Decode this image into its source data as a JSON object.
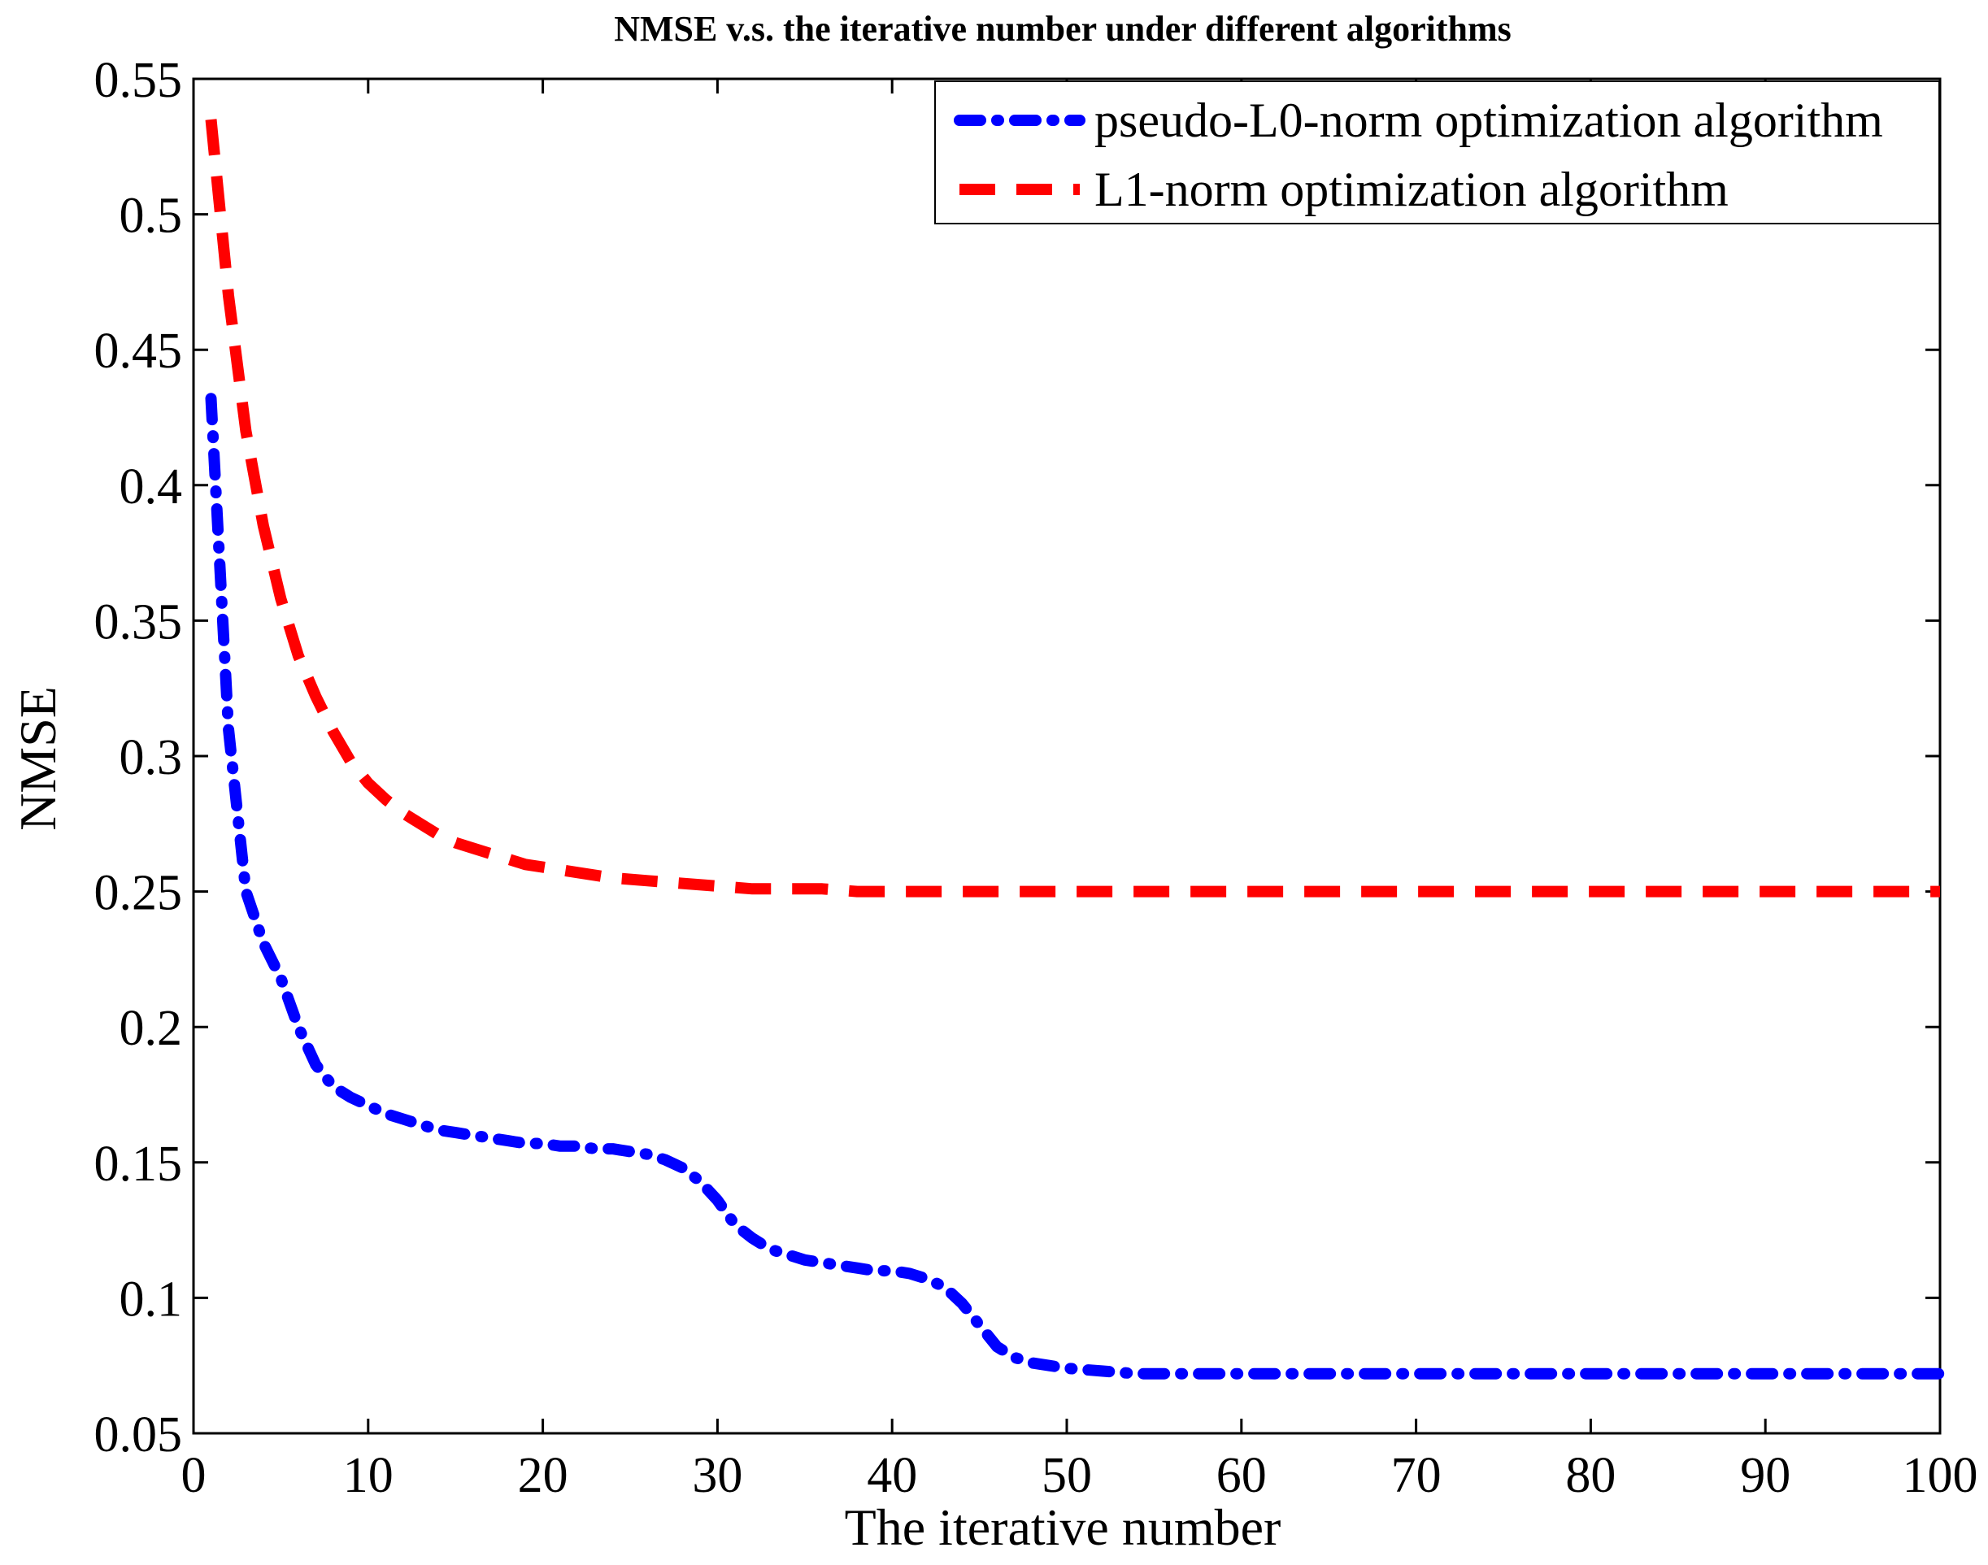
{
  "chart_data": {
    "type": "line",
    "title": "NMSE v.s. the iterative number under different algorithms",
    "xlabel": "The iterative number",
    "ylabel": "NMSE",
    "xlim": [
      0,
      100
    ],
    "ylim": [
      0.05,
      0.55
    ],
    "xticks": [
      0,
      10,
      20,
      30,
      40,
      50,
      60,
      70,
      80,
      90,
      100
    ],
    "yticks": [
      0.05,
      0.1,
      0.15,
      0.2,
      0.25,
      0.3,
      0.35,
      0.4,
      0.45,
      0.5,
      0.55
    ],
    "x_tick_labels": [
      "0",
      "10",
      "20",
      "30",
      "40",
      "50",
      "60",
      "70",
      "80",
      "90",
      "100"
    ],
    "y_tick_labels": [
      "0.05",
      "0.1",
      "0.15",
      "0.2",
      "0.25",
      "0.3",
      "0.35",
      "0.4",
      "0.45",
      "0.5",
      "0.55"
    ],
    "grid": false,
    "legend_position": "top-right",
    "series": [
      {
        "name": "pseudo-L0-norm optimization algorithm",
        "color": "#0000ff",
        "line_style": "dash-dot",
        "x": [
          1,
          2,
          3,
          4,
          5,
          6,
          7,
          8,
          9,
          10,
          11,
          12,
          13,
          14,
          15,
          16,
          17,
          18,
          19,
          20,
          21,
          22,
          23,
          24,
          25,
          26,
          27,
          28,
          29,
          30,
          31,
          32,
          33,
          34,
          35,
          36,
          37,
          38,
          39,
          40,
          41,
          42,
          43,
          44,
          45,
          46,
          47,
          48,
          49,
          50,
          52,
          54,
          56,
          58,
          60,
          65,
          70,
          75,
          80,
          85,
          90,
          95,
          100
        ],
        "y": [
          0.432,
          0.31,
          0.25,
          0.231,
          0.218,
          0.2,
          0.186,
          0.178,
          0.174,
          0.171,
          0.168,
          0.166,
          0.164,
          0.162,
          0.161,
          0.16,
          0.159,
          0.158,
          0.157,
          0.157,
          0.156,
          0.156,
          0.155,
          0.155,
          0.154,
          0.153,
          0.151,
          0.148,
          0.143,
          0.136,
          0.127,
          0.122,
          0.118,
          0.116,
          0.114,
          0.113,
          0.112,
          0.111,
          0.11,
          0.11,
          0.109,
          0.107,
          0.104,
          0.098,
          0.09,
          0.082,
          0.078,
          0.076,
          0.075,
          0.074,
          0.073,
          0.072,
          0.072,
          0.072,
          0.072,
          0.072,
          0.072,
          0.072,
          0.072,
          0.072,
          0.072,
          0.072,
          0.072
        ]
      },
      {
        "name": "L1-norm optimization algorithm",
        "color": "#ff0000",
        "line_style": "dashed",
        "x": [
          1,
          2,
          3,
          4,
          5,
          6,
          7,
          8,
          9,
          10,
          11,
          12,
          13,
          14,
          15,
          16,
          17,
          18,
          19,
          20,
          22,
          24,
          26,
          28,
          30,
          32,
          34,
          36,
          38,
          40,
          45,
          50,
          60,
          70,
          80,
          90,
          100
        ],
        "y": [
          0.535,
          0.47,
          0.42,
          0.385,
          0.358,
          0.337,
          0.322,
          0.309,
          0.298,
          0.29,
          0.284,
          0.279,
          0.275,
          0.271,
          0.268,
          0.266,
          0.264,
          0.262,
          0.26,
          0.259,
          0.257,
          0.255,
          0.254,
          0.253,
          0.252,
          0.251,
          0.251,
          0.251,
          0.25,
          0.25,
          0.25,
          0.25,
          0.25,
          0.25,
          0.25,
          0.25,
          0.25
        ]
      }
    ]
  }
}
